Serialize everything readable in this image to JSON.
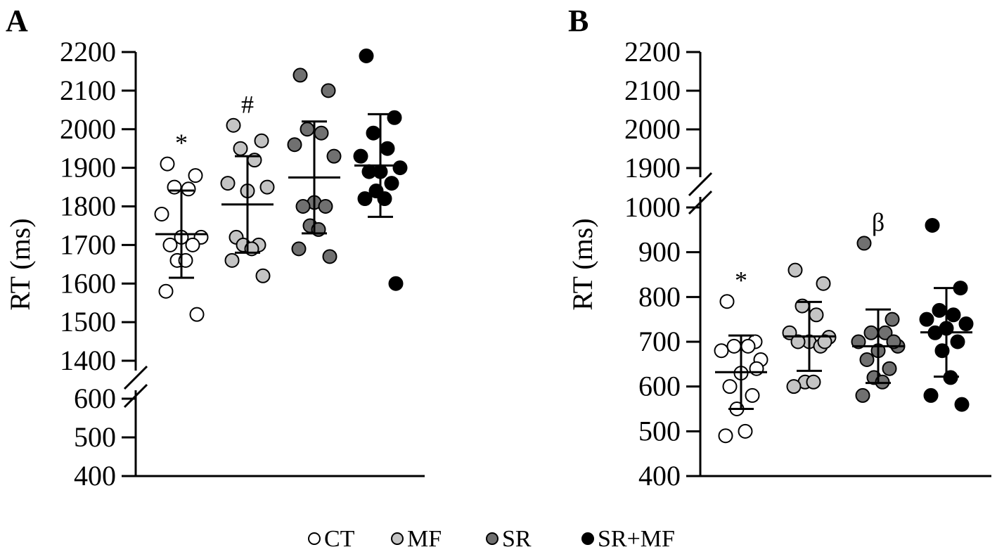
{
  "legend": {
    "items": [
      {
        "label": "CT",
        "color": "#ffffff"
      },
      {
        "label": "MF",
        "color": "#c4c4c4"
      },
      {
        "label": "SR",
        "color": "#707070"
      },
      {
        "label": "SR+MF",
        "color": "#000000"
      }
    ]
  },
  "chart_data": [
    {
      "panel": "A",
      "type": "scatter",
      "ylabel": "RT (ms)",
      "yaxis_break": {
        "lower_range": [
          400,
          600
        ],
        "upper_range": [
          1400,
          2200
        ]
      },
      "yticks": [
        400,
        500,
        600,
        1400,
        1500,
        1600,
        1700,
        1800,
        1900,
        2000,
        2100,
        2200
      ],
      "grid": false,
      "legend_position": "bottom-center",
      "categories": [
        "CT",
        "MF",
        "SR",
        "SR+MF"
      ],
      "series": [
        {
          "name": "CT",
          "color": "#ffffff",
          "mean": 1728,
          "sd": 113,
          "values": [
            1910,
            1880,
            1850,
            1845,
            1780,
            1720,
            1720,
            1700,
            1700,
            1660,
            1660,
            1580,
            1520
          ],
          "annotation": "*"
        },
        {
          "name": "MF",
          "color": "#c4c4c4",
          "mean": 1805,
          "sd": 125,
          "values": [
            2010,
            1970,
            1950,
            1920,
            1860,
            1850,
            1840,
            1720,
            1700,
            1700,
            1690,
            1660,
            1620
          ],
          "annotation": "#"
        },
        {
          "name": "SR",
          "color": "#707070",
          "mean": 1875,
          "sd": 145,
          "values": [
            2140,
            2100,
            2000,
            1990,
            1960,
            1930,
            1810,
            1800,
            1800,
            1750,
            1740,
            1690,
            1670
          ],
          "annotation": ""
        },
        {
          "name": "SR+MF",
          "color": "#000000",
          "mean": 1906,
          "sd": 133,
          "values": [
            2190,
            2030,
            1990,
            1950,
            1930,
            1900,
            1890,
            1890,
            1860,
            1840,
            1820,
            1820,
            1600
          ],
          "annotation": ""
        }
      ]
    },
    {
      "panel": "B",
      "type": "scatter",
      "ylabel": "RT (ms)",
      "yaxis_break": {
        "lower_range": [
          400,
          1000
        ],
        "upper_range": [
          1900,
          2200
        ]
      },
      "yticks": [
        400,
        500,
        600,
        700,
        800,
        900,
        1000,
        1900,
        2000,
        2100,
        2200
      ],
      "grid": false,
      "legend_position": "bottom-center",
      "categories": [
        "CT",
        "MF",
        "SR",
        "SR+MF"
      ],
      "series": [
        {
          "name": "CT",
          "color": "#ffffff",
          "mean": 632,
          "sd": 82,
          "values": [
            790,
            700,
            690,
            690,
            680,
            660,
            630,
            600,
            580,
            550,
            500,
            490,
            640
          ],
          "annotation": "*"
        },
        {
          "name": "MF",
          "color": "#c4c4c4",
          "mean": 712,
          "sd": 77,
          "values": [
            860,
            830,
            780,
            760,
            720,
            710,
            700,
            700,
            690,
            610,
            610,
            600,
            700
          ],
          "annotation": ""
        },
        {
          "name": "SR",
          "color": "#707070",
          "mean": 690,
          "sd": 82,
          "values": [
            920,
            750,
            720,
            720,
            700,
            690,
            680,
            660,
            640,
            620,
            610,
            580,
            700
          ],
          "annotation": "β"
        },
        {
          "name": "SR+MF",
          "color": "#000000",
          "mean": 721,
          "sd": 99,
          "values": [
            960,
            820,
            770,
            760,
            750,
            740,
            730,
            720,
            700,
            680,
            620,
            580,
            560
          ],
          "annotation": ""
        }
      ]
    }
  ]
}
